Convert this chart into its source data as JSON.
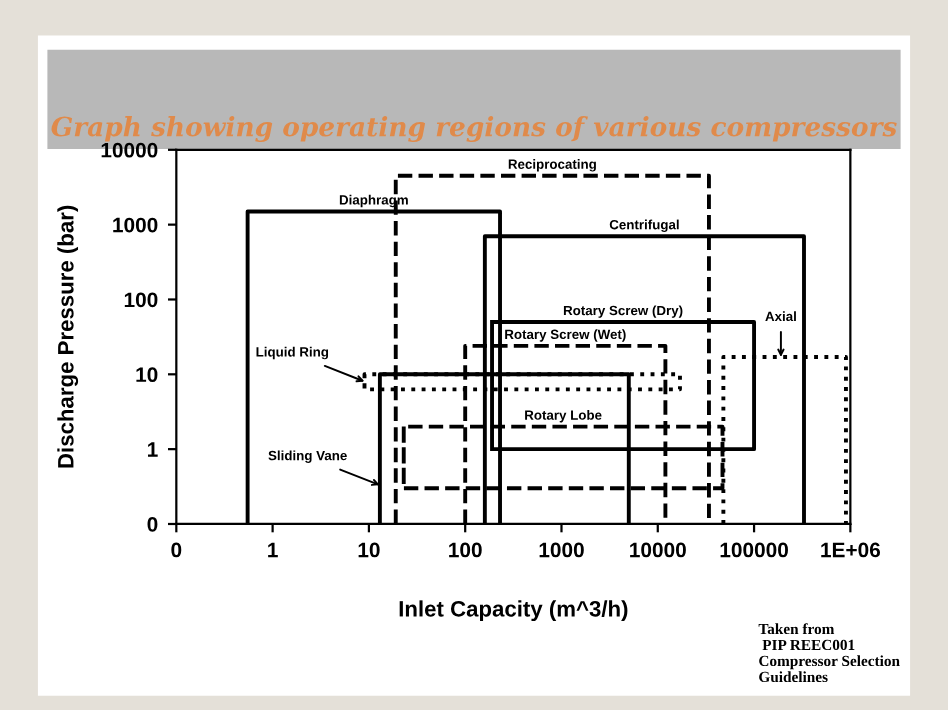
{
  "chart_data": {
    "type": "line",
    "title": "Graph showing operating regions of various compressors",
    "xlabel": "Inlet Capacity (m^3/h)",
    "ylabel": "Discharge Pressure (bar)",
    "log": "xy",
    "xlim": [
      0.1,
      1000000
    ],
    "ylim": [
      0.1,
      10000
    ],
    "xticks": [
      {
        "value": 0.1,
        "label": "0"
      },
      1,
      10,
      100,
      1000,
      10000,
      100000,
      {
        "value": 1000000,
        "label": "1E+06"
      }
    ],
    "yticks": [
      {
        "value": 0.1,
        "label": "0"
      },
      1,
      10,
      100,
      1000,
      10000
    ],
    "grid": false,
    "series": [
      {
        "name": "Diaphragm",
        "color": "#000000",
        "line_style": "solid",
        "x": [
          0.55,
          0.55,
          230,
          230
        ],
        "values": [
          0.1,
          1500,
          1500,
          0.1
        ]
      },
      {
        "name": "Reciprocating",
        "color": "#000000",
        "line_style": "dashed",
        "x": [
          19,
          19,
          34000,
          34000
        ],
        "values": [
          0.1,
          4500,
          4500,
          0.1
        ]
      },
      {
        "name": "Centrifugal",
        "color": "#000000",
        "line_style": "solid",
        "x": [
          160,
          160,
          330000,
          330000
        ],
        "values": [
          0.1,
          700,
          700,
          0.1
        ]
      },
      {
        "name": "Rotary Screw (Dry)",
        "color": "#000000",
        "line_style": "solid",
        "x": [
          190,
          190,
          100000,
          100000,
          190,
          190
        ],
        "values": [
          50,
          1,
          1,
          50,
          50,
          1
        ]
      },
      {
        "name": "Rotary Screw (Wet)",
        "color": "#000000",
        "line_style": "dashed",
        "x": [
          100,
          100,
          12000,
          12000
        ],
        "values": [
          0.1,
          24,
          24,
          0.1
        ]
      },
      {
        "color": "#000000",
        "line_style": "dotted",
        "x": [
          9,
          9,
          17000,
          17000,
          9,
          9
        ],
        "values": [
          10,
          6.3,
          6.3,
          10,
          10,
          6.3
        ]
      },
      {
        "color": "#000000",
        "line_style": "solid",
        "x": [
          13,
          13,
          5000,
          5000
        ],
        "values": [
          0.1,
          10,
          10,
          0.1
        ]
      },
      {
        "name": "Rotary Lobe",
        "color": "#000000",
        "line_style": "dashed",
        "x": [
          23,
          23,
          47000,
          47000,
          23,
          23
        ],
        "values": [
          2,
          0.3,
          0.3,
          2,
          2,
          0.3
        ]
      },
      {
        "color": "#000000",
        "line_style": "dotted",
        "x": [
          48000,
          48000,
          900000,
          900000
        ],
        "values": [
          0.1,
          17,
          17,
          0.1
        ]
      }
    ],
    "annotations": [
      {
        "text": "Liquid Ring",
        "x": 9,
        "y": 8
      },
      {
        "text": "Sliding Vane",
        "x": 13,
        "y": 0.33
      },
      {
        "text": "Axial",
        "x": 190000,
        "y": 17
      },
      "Taken from\n PIP REEC001\nCompressor Selection\nGuidelines"
    ]
  }
}
